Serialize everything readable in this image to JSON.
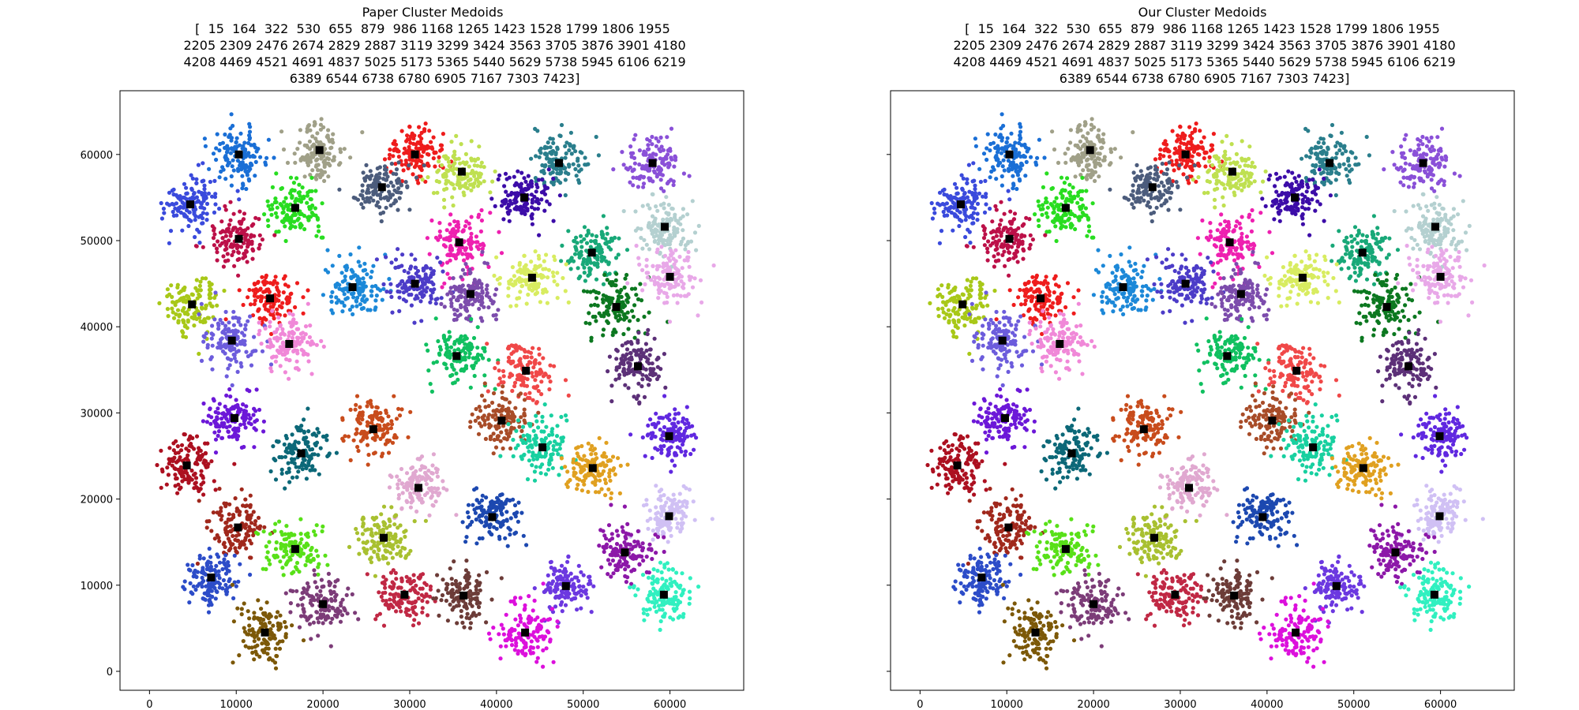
{
  "chart_data": [
    {
      "type": "scatter",
      "title": "Paper Cluster Medoids",
      "subtitle_lines": [
        "[  15  164  322  530  655  879  986 1168 1265 1423 1528 1799 1806 1955",
        " 2205 2309 2476 2674 2829 2887 3119 3299 3424 3563 3705 3876 3901 4180",
        " 4208 4469 4521 4691 4837 5025 5173 5365 5440 5629 5738 5945 6106 6219",
        " 6389 6544 6738 6780 6905 7167 7303 7423]"
      ],
      "xlabel": "",
      "ylabel": "",
      "xlim": [
        -3400,
        68500
      ],
      "ylim": [
        -2200,
        67400
      ],
      "xticks": [
        0,
        10000,
        20000,
        30000,
        40000,
        50000,
        60000
      ],
      "yticks": [
        0,
        10000,
        20000,
        30000,
        40000,
        50000,
        60000
      ],
      "grid": false,
      "medoid_color": "#000000",
      "clusters": [
        {
          "cx": 10300,
          "cy": 60000,
          "color": "#1a6fd6"
        },
        {
          "cx": 19600,
          "cy": 60500,
          "color": "#a0a088"
        },
        {
          "cx": 30600,
          "cy": 60000,
          "color": "#ee1c1c"
        },
        {
          "cx": 36000,
          "cy": 58000,
          "color": "#bfe050"
        },
        {
          "cx": 47200,
          "cy": 59000,
          "color": "#2a7e8c"
        },
        {
          "cx": 58000,
          "cy": 59000,
          "color": "#8a50d8"
        },
        {
          "cx": 4700,
          "cy": 54200,
          "color": "#3a4adc"
        },
        {
          "cx": 16800,
          "cy": 53800,
          "color": "#28dd20"
        },
        {
          "cx": 26800,
          "cy": 56200,
          "color": "#4c5c7c"
        },
        {
          "cx": 43200,
          "cy": 55000,
          "color": "#3c0ca8"
        },
        {
          "cx": 10300,
          "cy": 50200,
          "color": "#bc1048"
        },
        {
          "cx": 35700,
          "cy": 49800,
          "color": "#ee20b0"
        },
        {
          "cx": 51000,
          "cy": 48600,
          "color": "#18a878"
        },
        {
          "cx": 59400,
          "cy": 51600,
          "color": "#b4d0d0"
        },
        {
          "cx": 4900,
          "cy": 42600,
          "color": "#a8c818"
        },
        {
          "cx": 13900,
          "cy": 43300,
          "color": "#ee1c1c"
        },
        {
          "cx": 23400,
          "cy": 44600,
          "color": "#1c88d8"
        },
        {
          "cx": 30600,
          "cy": 45000,
          "color": "#4c3cc8"
        },
        {
          "cx": 37000,
          "cy": 43800,
          "color": "#7c4cac"
        },
        {
          "cx": 44100,
          "cy": 45700,
          "color": "#d8ec60"
        },
        {
          "cx": 53800,
          "cy": 42300,
          "color": "#0c7820"
        },
        {
          "cx": 60000,
          "cy": 45800,
          "color": "#e8a8e8"
        },
        {
          "cx": 9500,
          "cy": 38400,
          "color": "#6c5cdc"
        },
        {
          "cx": 16100,
          "cy": 38000,
          "color": "#f088d8"
        },
        {
          "cx": 35400,
          "cy": 36600,
          "color": "#10c060"
        },
        {
          "cx": 43400,
          "cy": 34900,
          "color": "#f04848"
        },
        {
          "cx": 56300,
          "cy": 35400,
          "color": "#5c3078"
        },
        {
          "cx": 9800,
          "cy": 29400,
          "color": "#6c18d8"
        },
        {
          "cx": 17500,
          "cy": 25300,
          "color": "#0c6878"
        },
        {
          "cx": 25800,
          "cy": 28100,
          "color": "#c84c1c"
        },
        {
          "cx": 40600,
          "cy": 29100,
          "color": "#a84c28"
        },
        {
          "cx": 45300,
          "cy": 26000,
          "color": "#18d0a0"
        },
        {
          "cx": 59900,
          "cy": 27300,
          "color": "#6028e0"
        },
        {
          "cx": 4300,
          "cy": 23900,
          "color": "#ac1020"
        },
        {
          "cx": 31000,
          "cy": 21300,
          "color": "#e0a8d0"
        },
        {
          "cx": 51100,
          "cy": 23600,
          "color": "#e0a020"
        },
        {
          "cx": 39500,
          "cy": 17900,
          "color": "#1c48b0"
        },
        {
          "cx": 59900,
          "cy": 18000,
          "color": "#d0c0f4"
        },
        {
          "cx": 10200,
          "cy": 16700,
          "color": "#a0281c"
        },
        {
          "cx": 16800,
          "cy": 14200,
          "color": "#58e018"
        },
        {
          "cx": 27000,
          "cy": 15500,
          "color": "#a8c030"
        },
        {
          "cx": 54800,
          "cy": 13800,
          "color": "#8c18a8"
        },
        {
          "cx": 7100,
          "cy": 10900,
          "color": "#2c4cc8"
        },
        {
          "cx": 20000,
          "cy": 7800,
          "color": "#7c3c78"
        },
        {
          "cx": 29400,
          "cy": 8900,
          "color": "#c02844"
        },
        {
          "cx": 36200,
          "cy": 8800,
          "color": "#6c3c38"
        },
        {
          "cx": 48000,
          "cy": 9900,
          "color": "#6c38e0"
        },
        {
          "cx": 59300,
          "cy": 8900,
          "color": "#30f0c0"
        },
        {
          "cx": 13300,
          "cy": 4500,
          "color": "#7c5808"
        },
        {
          "cx": 43300,
          "cy": 4500,
          "color": "#dc10dc"
        }
      ]
    },
    {
      "type": "scatter",
      "title": "Our Cluster Medoids",
      "subtitle_lines": [
        "[  15  164  322  530  655  879  986 1168 1265 1423 1528 1799 1806 1955",
        " 2205 2309 2476 2674 2829 2887 3119 3299 3424 3563 3705 3876 3901 4180",
        " 4208 4469 4521 4691 4837 5025 5173 5365 5440 5629 5738 5945 6106 6219",
        " 6389 6544 6738 6780 6905 7167 7303 7423]"
      ],
      "xlabel": "",
      "ylabel": "",
      "xlim": [
        -3400,
        68500
      ],
      "ylim": [
        -2200,
        67400
      ],
      "xticks": [
        0,
        10000,
        20000,
        30000,
        40000,
        50000,
        60000
      ],
      "yticks": [
        0,
        10000,
        20000,
        30000,
        40000,
        50000,
        60000
      ],
      "show_ytick_labels": false,
      "grid": false,
      "medoid_color": "#000000",
      "same_clusters_as_first": true
    }
  ]
}
